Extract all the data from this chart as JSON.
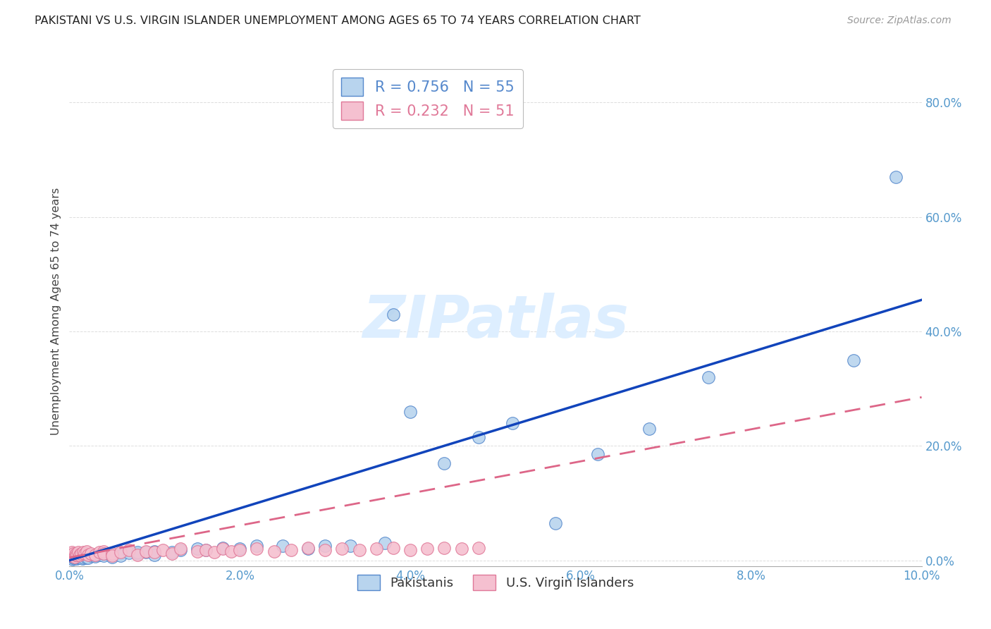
{
  "title": "PAKISTANI VS U.S. VIRGIN ISLANDER UNEMPLOYMENT AMONG AGES 65 TO 74 YEARS CORRELATION CHART",
  "source": "Source: ZipAtlas.com",
  "ylabel": "Unemployment Among Ages 65 to 74 years",
  "xlim": [
    0.0,
    0.1
  ],
  "ylim": [
    -0.01,
    0.88
  ],
  "xticks": [
    0.0,
    0.02,
    0.04,
    0.06,
    0.08,
    0.1
  ],
  "yticks": [
    0.0,
    0.2,
    0.4,
    0.6,
    0.8
  ],
  "ytick_labels": [
    "0.0%",
    "20.0%",
    "40.0%",
    "60.0%",
    "80.0%"
  ],
  "xtick_labels": [
    "0.0%",
    "2.0%",
    "4.0%",
    "6.0%",
    "8.0%",
    "10.0%"
  ],
  "pakistani_R": 0.756,
  "pakistani_N": 55,
  "usvi_R": 0.232,
  "usvi_N": 51,
  "pakistani_color": "#b8d4ee",
  "pakistani_edge_color": "#5588cc",
  "usvi_color": "#f5c0d0",
  "usvi_edge_color": "#e07898",
  "line_blue": "#1144bb",
  "line_pink": "#dd6688",
  "watermark_color": "#ddeeff",
  "background_color": "#ffffff",
  "grid_color": "#dddddd",
  "tick_color": "#5599cc",
  "pakistani_x": [
    0.0002,
    0.0003,
    0.0004,
    0.0005,
    0.0006,
    0.0007,
    0.0008,
    0.0009,
    0.001,
    0.0012,
    0.0013,
    0.0015,
    0.0017,
    0.002,
    0.002,
    0.0022,
    0.0025,
    0.003,
    0.003,
    0.0035,
    0.004,
    0.004,
    0.005,
    0.005,
    0.006,
    0.006,
    0.007,
    0.008,
    0.008,
    0.009,
    0.01,
    0.01,
    0.012,
    0.013,
    0.015,
    0.016,
    0.018,
    0.02,
    0.022,
    0.025,
    0.028,
    0.03,
    0.033,
    0.037,
    0.04,
    0.044,
    0.048,
    0.052,
    0.057,
    0.062,
    0.068,
    0.075,
    0.038,
    0.092,
    0.097
  ],
  "pakistani_y": [
    0.005,
    0.003,
    0.002,
    0.004,
    0.003,
    0.005,
    0.004,
    0.003,
    0.005,
    0.004,
    0.006,
    0.003,
    0.005,
    0.006,
    0.004,
    0.005,
    0.008,
    0.007,
    0.01,
    0.01,
    0.008,
    0.012,
    0.01,
    0.006,
    0.012,
    0.008,
    0.013,
    0.012,
    0.015,
    0.014,
    0.016,
    0.01,
    0.015,
    0.018,
    0.02,
    0.018,
    0.022,
    0.02,
    0.025,
    0.025,
    0.02,
    0.025,
    0.025,
    0.03,
    0.26,
    0.17,
    0.215,
    0.24,
    0.065,
    0.185,
    0.23,
    0.32,
    0.43,
    0.35,
    0.67
  ],
  "usvi_x": [
    0.0001,
    0.0002,
    0.0003,
    0.0004,
    0.0005,
    0.0006,
    0.0007,
    0.0008,
    0.0009,
    0.001,
    0.0012,
    0.0014,
    0.0016,
    0.0018,
    0.002,
    0.0022,
    0.0025,
    0.003,
    0.0035,
    0.004,
    0.004,
    0.005,
    0.005,
    0.006,
    0.007,
    0.008,
    0.009,
    0.01,
    0.011,
    0.012,
    0.013,
    0.015,
    0.016,
    0.017,
    0.018,
    0.019,
    0.02,
    0.022,
    0.024,
    0.026,
    0.028,
    0.03,
    0.032,
    0.034,
    0.036,
    0.038,
    0.04,
    0.042,
    0.044,
    0.046,
    0.048
  ],
  "usvi_y": [
    0.01,
    0.008,
    0.015,
    0.008,
    0.012,
    0.006,
    0.01,
    0.012,
    0.01,
    0.015,
    0.01,
    0.012,
    0.014,
    0.012,
    0.016,
    0.01,
    0.012,
    0.01,
    0.015,
    0.016,
    0.012,
    0.012,
    0.008,
    0.014,
    0.018,
    0.01,
    0.016,
    0.014,
    0.018,
    0.012,
    0.02,
    0.016,
    0.018,
    0.015,
    0.02,
    0.016,
    0.018,
    0.02,
    0.016,
    0.018,
    0.022,
    0.018,
    0.02,
    0.018,
    0.02,
    0.022,
    0.018,
    0.02,
    0.022,
    0.02,
    0.022
  ],
  "pk_line_x": [
    0.0,
    0.1
  ],
  "pk_line_y": [
    0.0,
    0.455
  ],
  "usvi_line_x": [
    0.0,
    0.1
  ],
  "usvi_line_y": [
    0.005,
    0.285
  ]
}
